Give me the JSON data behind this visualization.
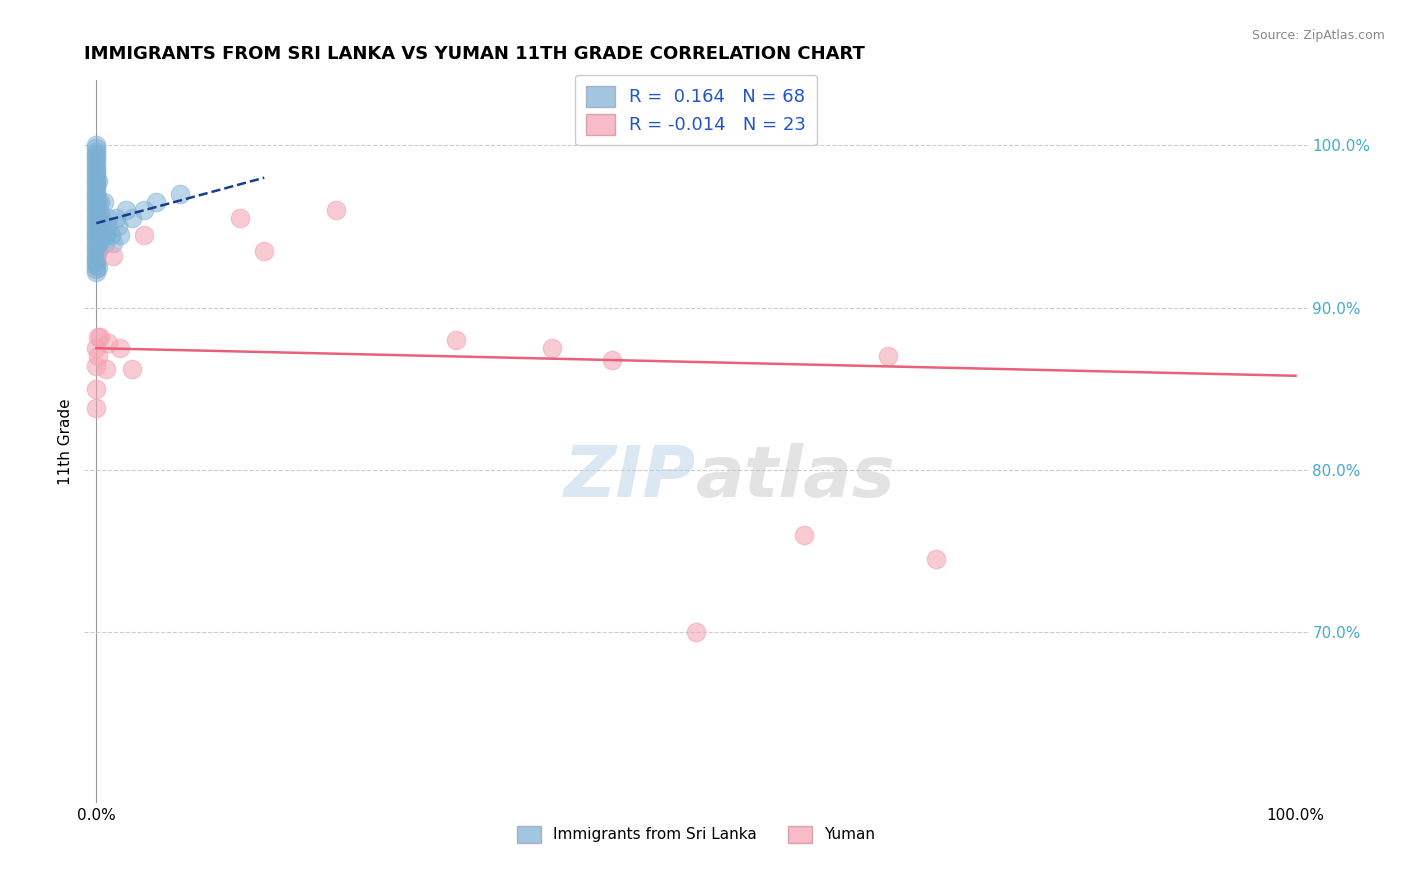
{
  "title": "IMMIGRANTS FROM SRI LANKA VS YUMAN 11TH GRADE CORRELATION CHART",
  "source": "Source: ZipAtlas.com",
  "ylabel": "11th Grade",
  "right_yticks": [
    0.7,
    0.8,
    0.9,
    1.0
  ],
  "right_yticklabels": [
    "70.0%",
    "80.0%",
    "90.0%",
    "100.0%"
  ],
  "xlim": [
    -0.01,
    1.01
  ],
  "ylim": [
    0.595,
    1.04
  ],
  "blue_R": 0.164,
  "blue_N": 68,
  "pink_R": -0.014,
  "pink_N": 23,
  "blue_color": "#7BAFD4",
  "pink_color": "#F4A0B0",
  "trendline_blue_color": "#1A3E8C",
  "trendline_pink_color": "#E8607A",
  "grid_color": "#CCCCCC",
  "blue_x": [
    0.0,
    0.0,
    0.0,
    0.0,
    0.0,
    0.0,
    0.0,
    0.0,
    0.0,
    0.0,
    0.0,
    0.0,
    0.0,
    0.0,
    0.0,
    0.0,
    0.0,
    0.0,
    0.0,
    0.0,
    0.0,
    0.0,
    0.0,
    0.0,
    0.0,
    0.0,
    0.0,
    0.0,
    0.0,
    0.0,
    0.0,
    0.0,
    0.0,
    0.0,
    0.0,
    0.0,
    0.0,
    0.0,
    0.0,
    0.0,
    0.001,
    0.001,
    0.001,
    0.001,
    0.001,
    0.001,
    0.002,
    0.002,
    0.002,
    0.003,
    0.003,
    0.004,
    0.005,
    0.006,
    0.007,
    0.008,
    0.009,
    0.01,
    0.012,
    0.014,
    0.016,
    0.018,
    0.02,
    0.025,
    0.03,
    0.04,
    0.05,
    0.07
  ],
  "blue_y": [
    1.0,
    0.998,
    0.996,
    0.994,
    0.992,
    0.99,
    0.988,
    0.986,
    0.984,
    0.982,
    0.98,
    0.978,
    0.976,
    0.974,
    0.972,
    0.97,
    0.968,
    0.966,
    0.964,
    0.962,
    0.96,
    0.958,
    0.956,
    0.954,
    0.952,
    0.95,
    0.948,
    0.946,
    0.944,
    0.942,
    0.94,
    0.938,
    0.936,
    0.934,
    0.932,
    0.93,
    0.928,
    0.926,
    0.924,
    0.922,
    0.978,
    0.965,
    0.955,
    0.945,
    0.935,
    0.925,
    0.96,
    0.95,
    0.94,
    0.965,
    0.945,
    0.955,
    0.945,
    0.965,
    0.94,
    0.945,
    0.95,
    0.955,
    0.945,
    0.94,
    0.955,
    0.95,
    0.945,
    0.96,
    0.955,
    0.96,
    0.965,
    0.97
  ],
  "pink_x": [
    0.0,
    0.0,
    0.0,
    0.0,
    0.001,
    0.001,
    0.003,
    0.008,
    0.01,
    0.014,
    0.02,
    0.03,
    0.04,
    0.12,
    0.14,
    0.2,
    0.3,
    0.38,
    0.43,
    0.5,
    0.59,
    0.66,
    0.7
  ],
  "pink_y": [
    0.875,
    0.864,
    0.85,
    0.838,
    0.882,
    0.87,
    0.882,
    0.862,
    0.878,
    0.932,
    0.875,
    0.862,
    0.945,
    0.955,
    0.935,
    0.96,
    0.88,
    0.875,
    0.868,
    0.7,
    0.76,
    0.87,
    0.745
  ],
  "trendline_blue_start_x": 0.0,
  "trendline_blue_end_x": 0.14,
  "trendline_blue_start_y": 0.952,
  "trendline_blue_end_y": 0.98,
  "trendline_pink_start_x": 0.0,
  "trendline_pink_end_x": 1.0,
  "trendline_pink_start_y": 0.875,
  "trendline_pink_end_y": 0.858
}
